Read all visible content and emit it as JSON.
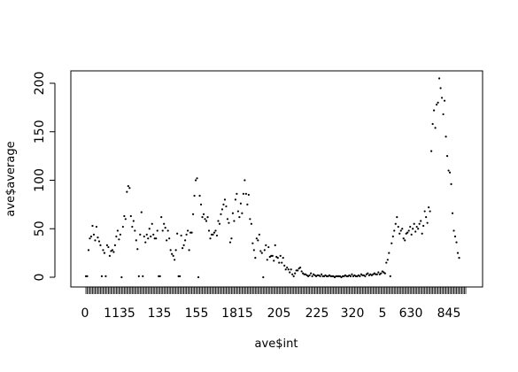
{
  "chart_data": {
    "type": "scatter",
    "xlabel": "ave$int",
    "ylabel": "ave$average",
    "ylim": [
      0,
      210
    ],
    "y_ticks": [
      0,
      50,
      100,
      150,
      200
    ],
    "x_tick_labels": [
      "0",
      "1135",
      "135",
      "155",
      "1815",
      "205",
      "225",
      "320",
      "5",
      "630",
      "845"
    ],
    "x_count": 288,
    "grid": false,
    "legend": "none",
    "points": [
      [
        0,
        1
      ],
      [
        1,
        1
      ],
      [
        2,
        28
      ],
      [
        3,
        40
      ],
      [
        4,
        42
      ],
      [
        5,
        53
      ],
      [
        6,
        44
      ],
      [
        7,
        38
      ],
      [
        8,
        52
      ],
      [
        9,
        41
      ],
      [
        10,
        37
      ],
      [
        11,
        33
      ],
      [
        12,
        1
      ],
      [
        13,
        28
      ],
      [
        14,
        25
      ],
      [
        15,
        1
      ],
      [
        16,
        33
      ],
      [
        17,
        31
      ],
      [
        18,
        22
      ],
      [
        19,
        27
      ],
      [
        20,
        28
      ],
      [
        21,
        26
      ],
      [
        22,
        33
      ],
      [
        23,
        42
      ],
      [
        24,
        48
      ],
      [
        25,
        39
      ],
      [
        26,
        44
      ],
      [
        27,
        0
      ],
      [
        28,
        52
      ],
      [
        29,
        63
      ],
      [
        30,
        60
      ],
      [
        31,
        88
      ],
      [
        32,
        94
      ],
      [
        33,
        92
      ],
      [
        34,
        63
      ],
      [
        35,
        52
      ],
      [
        36,
        58
      ],
      [
        37,
        48
      ],
      [
        38,
        38
      ],
      [
        39,
        29
      ],
      [
        40,
        1
      ],
      [
        41,
        44
      ],
      [
        42,
        67
      ],
      [
        43,
        1
      ],
      [
        44,
        42
      ],
      [
        45,
        36
      ],
      [
        46,
        44
      ],
      [
        47,
        40
      ],
      [
        48,
        50
      ],
      [
        49,
        42
      ],
      [
        50,
        55
      ],
      [
        51,
        44
      ],
      [
        52,
        40
      ],
      [
        53,
        40
      ],
      [
        54,
        48
      ],
      [
        55,
        1
      ],
      [
        56,
        1
      ],
      [
        57,
        62
      ],
      [
        58,
        48
      ],
      [
        59,
        55
      ],
      [
        60,
        51
      ],
      [
        61,
        38
      ],
      [
        62,
        48
      ],
      [
        63,
        40
      ],
      [
        64,
        28
      ],
      [
        65,
        24
      ],
      [
        66,
        22
      ],
      [
        67,
        18
      ],
      [
        68,
        28
      ],
      [
        69,
        45
      ],
      [
        70,
        1
      ],
      [
        71,
        1
      ],
      [
        72,
        43
      ],
      [
        73,
        30
      ],
      [
        74,
        33
      ],
      [
        75,
        38
      ],
      [
        76,
        44
      ],
      [
        77,
        48
      ],
      [
        78,
        28
      ],
      [
        79,
        46
      ],
      [
        80,
        46
      ],
      [
        81,
        65
      ],
      [
        82,
        84
      ],
      [
        83,
        100
      ],
      [
        84,
        102
      ],
      [
        85,
        0
      ],
      [
        86,
        84
      ],
      [
        87,
        75
      ],
      [
        88,
        62
      ],
      [
        89,
        65
      ],
      [
        90,
        60
      ],
      [
        91,
        58
      ],
      [
        92,
        62
      ],
      [
        93,
        48
      ],
      [
        94,
        40
      ],
      [
        95,
        44
      ],
      [
        96,
        44
      ],
      [
        97,
        46
      ],
      [
        98,
        48
      ],
      [
        99,
        43
      ],
      [
        100,
        58
      ],
      [
        101,
        55
      ],
      [
        102,
        65
      ],
      [
        103,
        70
      ],
      [
        104,
        75
      ],
      [
        105,
        80
      ],
      [
        106,
        73
      ],
      [
        107,
        60
      ],
      [
        108,
        56
      ],
      [
        109,
        36
      ],
      [
        110,
        40
      ],
      [
        111,
        66
      ],
      [
        112,
        58
      ],
      [
        113,
        80
      ],
      [
        114,
        86
      ],
      [
        115,
        68
      ],
      [
        116,
        62
      ],
      [
        117,
        76
      ],
      [
        118,
        66
      ],
      [
        119,
        86
      ],
      [
        120,
        100
      ],
      [
        121,
        86
      ],
      [
        122,
        75
      ],
      [
        123,
        85
      ],
      [
        124,
        60
      ],
      [
        125,
        55
      ],
      [
        126,
        35
      ],
      [
        127,
        28
      ],
      [
        128,
        20
      ],
      [
        129,
        40
      ],
      [
        130,
        38
      ],
      [
        131,
        44
      ],
      [
        132,
        27
      ],
      [
        133,
        25
      ],
      [
        134,
        0
      ],
      [
        135,
        28
      ],
      [
        136,
        33
      ],
      [
        137,
        18
      ],
      [
        138,
        31
      ],
      [
        139,
        21
      ],
      [
        140,
        22
      ],
      [
        141,
        22
      ],
      [
        142,
        17
      ],
      [
        143,
        33
      ],
      [
        144,
        21
      ],
      [
        145,
        20
      ],
      [
        146,
        15
      ],
      [
        147,
        22
      ],
      [
        148,
        15
      ],
      [
        149,
        20
      ],
      [
        150,
        12
      ],
      [
        151,
        8
      ],
      [
        152,
        10
      ],
      [
        153,
        8
      ],
      [
        154,
        5
      ],
      [
        155,
        8
      ],
      [
        156,
        3
      ],
      [
        157,
        1
      ],
      [
        158,
        4
      ],
      [
        159,
        7
      ],
      [
        160,
        7
      ],
      [
        161,
        9
      ],
      [
        162,
        10
      ],
      [
        163,
        6
      ],
      [
        164,
        4
      ],
      [
        165,
        3
      ],
      [
        166,
        3
      ],
      [
        167,
        2
      ],
      [
        168,
        1
      ],
      [
        169,
        2
      ],
      [
        170,
        4
      ],
      [
        171,
        1
      ],
      [
        172,
        3
      ],
      [
        173,
        2
      ],
      [
        174,
        1
      ],
      [
        175,
        2
      ],
      [
        176,
        2
      ],
      [
        177,
        1
      ],
      [
        178,
        3
      ],
      [
        179,
        1
      ],
      [
        180,
        1
      ],
      [
        181,
        2
      ],
      [
        182,
        1
      ],
      [
        183,
        1
      ],
      [
        184,
        2
      ],
      [
        185,
        1
      ],
      [
        186,
        1
      ],
      [
        187,
        1
      ],
      [
        188,
        0
      ],
      [
        189,
        1
      ],
      [
        190,
        1
      ],
      [
        191,
        1
      ],
      [
        192,
        1
      ],
      [
        193,
        0
      ],
      [
        194,
        1
      ],
      [
        195,
        1
      ],
      [
        196,
        2
      ],
      [
        197,
        1
      ],
      [
        198,
        1
      ],
      [
        199,
        2
      ],
      [
        200,
        1
      ],
      [
        201,
        3
      ],
      [
        202,
        1
      ],
      [
        203,
        2
      ],
      [
        204,
        1
      ],
      [
        205,
        1
      ],
      [
        206,
        2
      ],
      [
        207,
        1
      ],
      [
        208,
        3
      ],
      [
        209,
        2
      ],
      [
        210,
        2
      ],
      [
        211,
        1
      ],
      [
        212,
        3
      ],
      [
        213,
        4
      ],
      [
        214,
        2
      ],
      [
        215,
        3
      ],
      [
        216,
        2
      ],
      [
        217,
        3
      ],
      [
        218,
        4
      ],
      [
        219,
        3
      ],
      [
        220,
        3
      ],
      [
        221,
        5
      ],
      [
        222,
        3
      ],
      [
        223,
        4
      ],
      [
        224,
        6
      ],
      [
        225,
        5
      ],
      [
        226,
        4
      ],
      [
        227,
        15
      ],
      [
        228,
        18
      ],
      [
        229,
        25
      ],
      [
        230,
        1
      ],
      [
        231,
        35
      ],
      [
        232,
        42
      ],
      [
        233,
        48
      ],
      [
        234,
        55
      ],
      [
        235,
        62
      ],
      [
        236,
        52
      ],
      [
        237,
        45
      ],
      [
        238,
        48
      ],
      [
        239,
        50
      ],
      [
        240,
        40
      ],
      [
        241,
        38
      ],
      [
        242,
        45
      ],
      [
        243,
        46
      ],
      [
        244,
        48
      ],
      [
        245,
        52
      ],
      [
        246,
        44
      ],
      [
        247,
        50
      ],
      [
        248,
        55
      ],
      [
        249,
        47
      ],
      [
        250,
        52
      ],
      [
        251,
        50
      ],
      [
        252,
        55
      ],
      [
        253,
        58
      ],
      [
        254,
        45
      ],
      [
        255,
        53
      ],
      [
        256,
        68
      ],
      [
        257,
        62
      ],
      [
        258,
        56
      ],
      [
        259,
        72
      ],
      [
        260,
        68
      ],
      [
        261,
        130
      ],
      [
        262,
        158
      ],
      [
        263,
        172
      ],
      [
        264,
        154
      ],
      [
        265,
        178
      ],
      [
        266,
        180
      ],
      [
        267,
        205
      ],
      [
        268,
        195
      ],
      [
        269,
        185
      ],
      [
        270,
        168
      ],
      [
        271,
        182
      ],
      [
        272,
        145
      ],
      [
        273,
        125
      ],
      [
        274,
        110
      ],
      [
        275,
        108
      ],
      [
        276,
        96
      ],
      [
        277,
        66
      ],
      [
        278,
        48
      ],
      [
        279,
        42
      ],
      [
        280,
        36
      ],
      [
        281,
        25
      ],
      [
        282,
        20
      ]
    ]
  }
}
